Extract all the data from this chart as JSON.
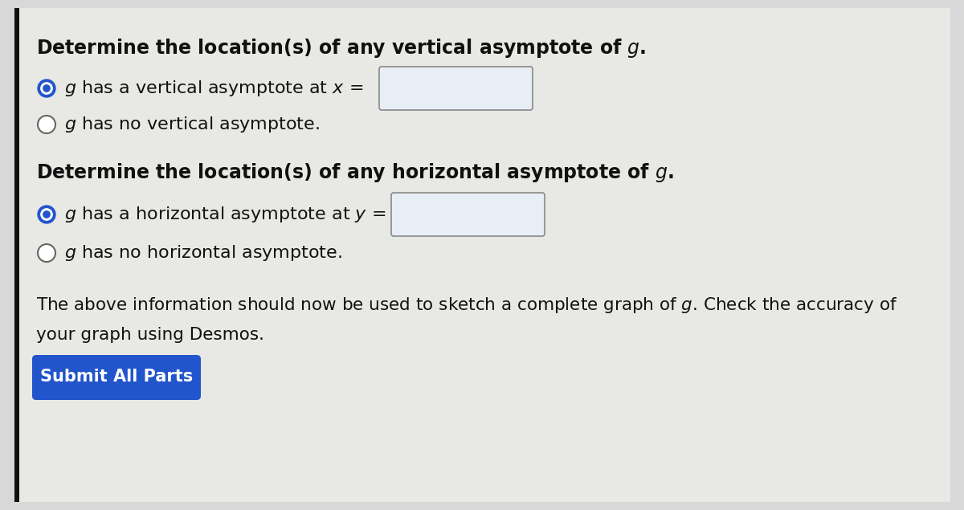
{
  "bg_color": "#d8d8d8",
  "panel_color": "#e8e8e4",
  "text_color": "#111111",
  "button_text": "Submit All Parts",
  "button_color": "#2255cc",
  "button_text_color": "#ffffff",
  "radio_selected_fill": "#2255cc",
  "radio_unselected_fill": "#ffffff",
  "radio_border_color": "#666666",
  "input_box_color": "#e8eef5",
  "input_box_border": "#888888",
  "left_bar_color": "#111111",
  "figsize": [
    12.0,
    6.35
  ],
  "dpi": 100
}
